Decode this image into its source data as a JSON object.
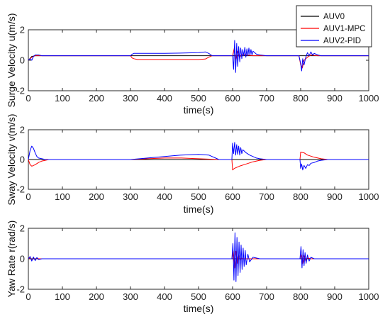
{
  "chart_data": [
    {
      "type": "line",
      "ylabel": "Surge Velocity u(m/s)",
      "xlabel": "time(s)",
      "xlim": [
        0,
        1000
      ],
      "ylim": [
        -2,
        2
      ],
      "xticks": [
        0,
        100,
        200,
        300,
        400,
        500,
        600,
        700,
        800,
        900,
        1000
      ],
      "yticks": [
        -2,
        0,
        2
      ],
      "grid": false,
      "legend": {
        "placement": "top-right",
        "entries": [
          "AUV0",
          "AUV1-MPC",
          "AUV2-PID"
        ]
      },
      "series": [
        {
          "name": "AUV0",
          "color": "#000000",
          "x": [
            0,
            10,
            20,
            30,
            40,
            60,
            300,
            600,
            800,
            1000
          ],
          "y": [
            0,
            0.25,
            0.3,
            0.3,
            0.3,
            0.3,
            0.3,
            0.3,
            0.3,
            0.3
          ]
        },
        {
          "name": "AUV1-MPC",
          "color": "#ff0000",
          "x": [
            0,
            10,
            20,
            30,
            40,
            60,
            300,
            305,
            310,
            320,
            400,
            500,
            520,
            530,
            540,
            560,
            600,
            605,
            610,
            615,
            620,
            630,
            640,
            660,
            700,
            795,
            800,
            805,
            810,
            820,
            830,
            850,
            1000
          ],
          "y": [
            0,
            0.2,
            0.3,
            0.3,
            0.3,
            0.3,
            0.3,
            0.15,
            0.1,
            0.05,
            0.05,
            0.05,
            0.08,
            0.2,
            0.3,
            0.3,
            0.3,
            0.8,
            0.0,
            0.6,
            0.2,
            0.4,
            0.35,
            0.3,
            0.3,
            0.3,
            -0.3,
            -0.5,
            0.0,
            0.2,
            0.35,
            0.3,
            0.3
          ]
        },
        {
          "name": "AUV2-PID",
          "color": "#0000ff",
          "x": [
            0,
            5,
            10,
            15,
            20,
            30,
            40,
            60,
            300,
            305,
            310,
            320,
            400,
            500,
            520,
            530,
            540,
            560,
            590,
            600,
            603,
            606,
            609,
            612,
            615,
            618,
            621,
            624,
            627,
            630,
            633,
            636,
            639,
            642,
            645,
            648,
            651,
            654,
            657,
            660,
            665,
            670,
            680,
            700,
            720,
            795,
            800,
            803,
            806,
            810,
            815,
            820,
            825,
            830,
            835,
            840,
            850,
            860,
            1000
          ],
          "y": [
            0,
            0.1,
            0.0,
            0.25,
            0.35,
            0.35,
            0.3,
            0.3,
            0.3,
            0.4,
            0.45,
            0.45,
            0.45,
            0.5,
            0.55,
            0.45,
            0.3,
            0.3,
            0.3,
            0.3,
            -0.6,
            1.3,
            -0.8,
            1.1,
            -0.4,
            0.9,
            -0.1,
            0.8,
            0.1,
            0.7,
            0.3,
            0.85,
            0.2,
            0.75,
            0.3,
            0.8,
            0.35,
            0.7,
            0.35,
            0.6,
            0.5,
            0.4,
            0.35,
            0.3,
            0.3,
            0.3,
            -0.2,
            -0.7,
            0.1,
            -0.3,
            0.2,
            0.5,
            0.3,
            0.55,
            0.35,
            0.45,
            0.35,
            0.3,
            0.3
          ]
        }
      ]
    },
    {
      "type": "line",
      "ylabel": "Sway Velocity v(m/s)",
      "xlabel": "time(s)",
      "xlim": [
        0,
        1000
      ],
      "ylim": [
        -2,
        2
      ],
      "xticks": [
        0,
        100,
        200,
        300,
        400,
        500,
        600,
        700,
        800,
        900,
        1000
      ],
      "yticks": [
        -2,
        0,
        2
      ],
      "grid": false,
      "series": [
        {
          "name": "AUV0",
          "color": "#000000",
          "x": [
            0,
            1000
          ],
          "y": [
            0,
            0
          ]
        },
        {
          "name": "AUV1-MPC",
          "color": "#ff0000",
          "x": [
            0,
            5,
            10,
            20,
            30,
            40,
            50,
            60,
            300,
            350,
            400,
            450,
            500,
            540,
            560,
            598,
            600,
            605,
            620,
            640,
            660,
            680,
            700,
            798,
            800,
            810,
            820,
            840,
            860,
            880,
            1000
          ],
          "y": [
            0,
            -0.35,
            -0.45,
            -0.35,
            -0.2,
            -0.1,
            -0.05,
            0,
            0,
            0.05,
            0.1,
            0.1,
            0.05,
            0.02,
            0,
            0,
            -0.7,
            -0.6,
            -0.45,
            -0.3,
            -0.15,
            -0.05,
            0,
            0,
            0.5,
            0.45,
            0.3,
            0.15,
            0.05,
            0,
            0
          ]
        },
        {
          "name": "AUV2-PID",
          "color": "#0000ff",
          "x": [
            0,
            5,
            10,
            15,
            20,
            25,
            30,
            40,
            50,
            60,
            300,
            350,
            400,
            450,
            500,
            530,
            560,
            598,
            600,
            603,
            606,
            609,
            612,
            615,
            618,
            621,
            624,
            627,
            630,
            635,
            640,
            650,
            660,
            670,
            680,
            700,
            798,
            800,
            803,
            806,
            810,
            815,
            820,
            825,
            830,
            840,
            850,
            860,
            880,
            1000
          ],
          "y": [
            0,
            0.6,
            0.9,
            0.75,
            0.45,
            0.2,
            0.1,
            0.05,
            0,
            0,
            0,
            0.1,
            0.2,
            0.3,
            0.35,
            0.3,
            0,
            0,
            1.1,
            0.4,
            1.15,
            0.3,
            1.0,
            0.35,
            0.9,
            0.3,
            0.8,
            0.4,
            0.65,
            0.55,
            0.45,
            0.3,
            0.2,
            0.1,
            0.05,
            0,
            0,
            -0.6,
            -0.3,
            -0.7,
            -0.4,
            -0.6,
            -0.35,
            -0.4,
            -0.25,
            -0.2,
            -0.1,
            -0.05,
            0,
            0
          ]
        }
      ]
    },
    {
      "type": "line",
      "ylabel": "Yaw Rate r(rad/s)",
      "xlabel": "time(s)",
      "xlim": [
        0,
        1000
      ],
      "ylim": [
        -2,
        2
      ],
      "xticks": [
        0,
        100,
        200,
        300,
        400,
        500,
        600,
        700,
        800,
        900,
        1000
      ],
      "yticks": [
        -2,
        0,
        2
      ],
      "grid": false,
      "series": [
        {
          "name": "AUV0",
          "color": "#000000",
          "x": [
            0,
            1000
          ],
          "y": [
            0,
            0
          ]
        },
        {
          "name": "AUV1-MPC",
          "color": "#ff0000",
          "x": [
            0,
            5,
            10,
            15,
            20,
            25,
            30,
            40,
            60,
            598,
            602,
            606,
            610,
            614,
            618,
            622,
            626,
            630,
            640,
            660,
            798,
            802,
            806,
            810,
            815,
            820,
            830,
            1000
          ],
          "y": [
            0,
            0.08,
            -0.08,
            0.06,
            -0.06,
            0.04,
            0,
            0,
            0,
            0,
            0.5,
            -0.6,
            0.5,
            -0.3,
            0.25,
            -0.1,
            0.05,
            0,
            0,
            0,
            0,
            0.3,
            -0.3,
            0.2,
            -0.15,
            0.05,
            0,
            0
          ]
        },
        {
          "name": "AUV2-PID",
          "color": "#0000ff",
          "x": [
            0,
            5,
            10,
            15,
            20,
            25,
            30,
            40,
            60,
            598,
            601,
            604,
            607,
            610,
            613,
            616,
            619,
            622,
            625,
            628,
            631,
            634,
            637,
            640,
            645,
            650,
            660,
            680,
            798,
            801,
            804,
            807,
            810,
            813,
            816,
            820,
            825,
            830,
            840,
            1000
          ],
          "y": [
            0,
            0.15,
            -0.15,
            0.12,
            -0.12,
            0.08,
            -0.05,
            0,
            0,
            0,
            1.0,
            -1.4,
            1.7,
            -1.5,
            1.4,
            -1.1,
            1.1,
            -0.9,
            0.9,
            -0.7,
            0.7,
            -0.5,
            0.55,
            -0.4,
            0.3,
            -0.2,
            0.1,
            0,
            0,
            0.8,
            -0.6,
            0.6,
            -0.45,
            0.4,
            -0.3,
            0.25,
            -0.15,
            0.1,
            0,
            0
          ]
        }
      ]
    }
  ]
}
